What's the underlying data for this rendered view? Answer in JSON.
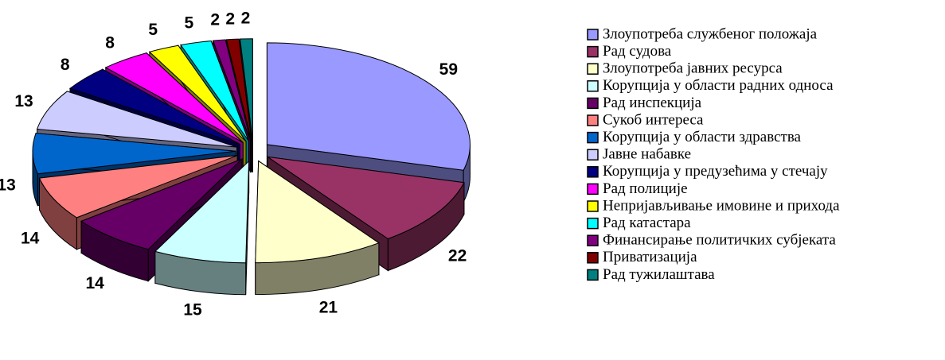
{
  "chart_data": {
    "type": "pie3d",
    "categories": [
      "Злоупотреба службеног положаја",
      "Рад судова",
      "Злоупотреба јавних ресурса",
      "Корупција у области радних односа",
      "Рад инспекција",
      "Сукоб интереса",
      "Корупција у области здравства",
      "Јавне набавке",
      "Корупција у предузећима у стечају",
      "Рад полиције",
      "Непријављивање имовине и прихода",
      "Рад катастара",
      "Финансирање политичких субјеката",
      "Приватизација",
      "Рад тужилаштава"
    ],
    "values": [
      59,
      22,
      21,
      15,
      14,
      14,
      13,
      13,
      8,
      8,
      5,
      5,
      2,
      2,
      2
    ],
    "colors": [
      "#9999ff",
      "#993366",
      "#ffffcc",
      "#ccffff",
      "#660066",
      "#ff8080",
      "#0066cc",
      "#ccccff",
      "#000080",
      "#ff00ff",
      "#ffff00",
      "#00ffff",
      "#800080",
      "#800000",
      "#008080"
    ],
    "legend": "right"
  }
}
